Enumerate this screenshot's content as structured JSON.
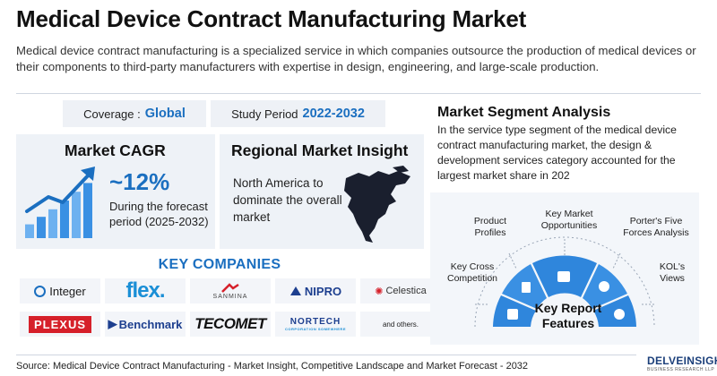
{
  "title": "Medical Device Contract Manufacturing Market",
  "intro": "Medical device contract manufacturing is a specialized service in which companies outsource the production of medical devices or their components to third-party manufacturers with expertise in design, engineering, and large-scale production.",
  "coverage": {
    "label": "Coverage :",
    "value": "Global"
  },
  "study_period": {
    "label": "Study Period",
    "value": "2022-2032"
  },
  "cagr": {
    "title": "Market CAGR",
    "value": "~12%",
    "text": "During the forecast period (2025-2032)",
    "icon": "growth-bar-chart-icon",
    "bar_levels": [
      0.22,
      0.34,
      0.46,
      0.6,
      0.74,
      0.88
    ]
  },
  "regional": {
    "title": "Regional Market Insight",
    "text": "North America to dominate the overall market",
    "icon": "north-america-map-icon"
  },
  "segment": {
    "title": "Market Segment Analysis",
    "text": "In the service type segment of the medical device contract manufacturing market, the design & development services category accounted for the largest market share in 202"
  },
  "key_companies": {
    "title": "KEY COMPANIES",
    "logos": [
      "Integer",
      "flex.",
      "SANMINA",
      "NIPRO",
      "Celestica",
      "PLEXUS",
      "Benchmark",
      "TECOMET",
      "NORTECH",
      "and others."
    ],
    "nortech_tag": "CORPORATION SOMEWHERE"
  },
  "report_features": {
    "title": "Key Report Features",
    "items": [
      {
        "label": "Key Cross Competition",
        "icon": "chess-icon"
      },
      {
        "label": "Product Profiles",
        "icon": "profile-list-icon"
      },
      {
        "label": "Key Market Opportunities",
        "icon": "opportunity-chart-icon"
      },
      {
        "label": "Porter's Five Forces Analysis",
        "icon": "five-forces-icon"
      },
      {
        "label": "KOL's Views",
        "icon": "expert-views-icon"
      }
    ]
  },
  "source": "Source: Medical Device Contract Manufacturing - Market Insight, Competitive Landscape and Market Forecast - 2032",
  "brand": {
    "name": "DELVEINSIGHT",
    "tag": "BUSINESS RESEARCH LLP"
  },
  "colors": {
    "accent": "#1b6fc0",
    "card_bg": "#eef2f7",
    "arc_blue": "#3a8fe0"
  }
}
